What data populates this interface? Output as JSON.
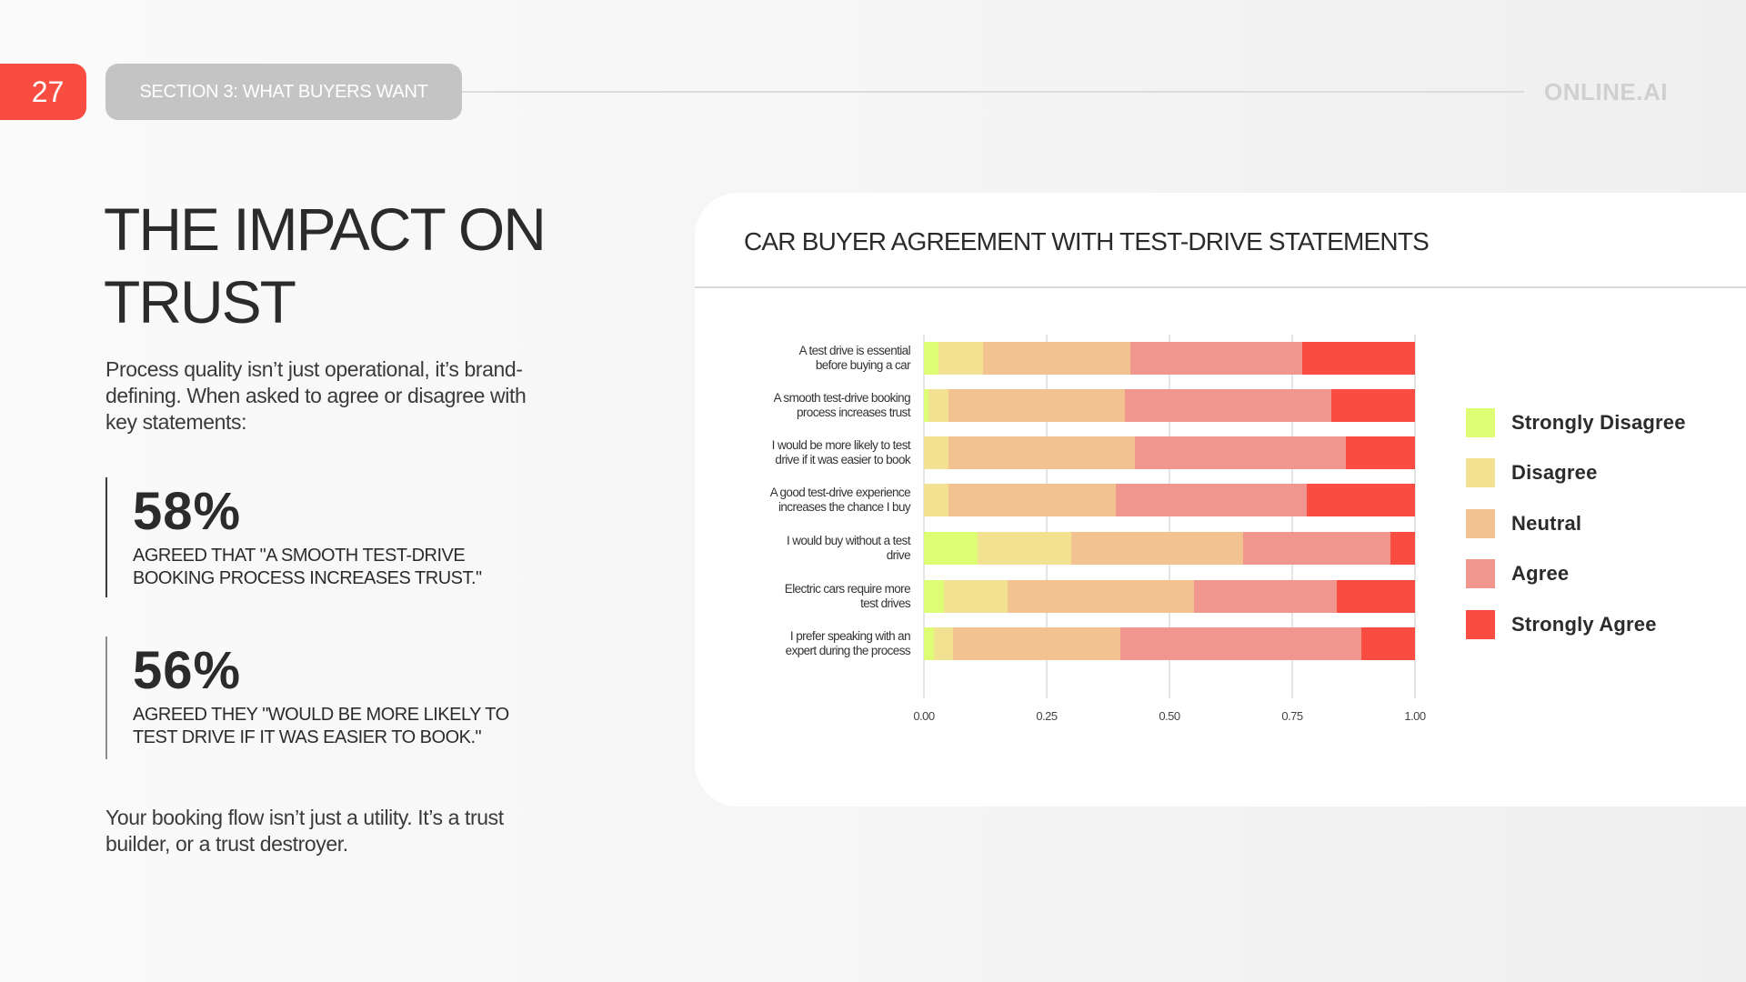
{
  "header": {
    "page_number": "27",
    "section_label": "SECTION 3: WHAT BUYERS WANT",
    "brand": "ONLINE.AI"
  },
  "left": {
    "title_line1": "THE IMPACT ON",
    "title_line2": "TRUST",
    "intro": "Process quality isn’t just operational, it’s brand-defining. When asked to agree or disagree with key statements:",
    "stats": [
      {
        "value": "58%",
        "caption": "AGREED THAT \"A SMOOTH TEST-DRIVE BOOKING PROCESS INCREASES TRUST.\""
      },
      {
        "value": "56%",
        "caption": "AGREED THEY \"WOULD BE MORE LIKELY TO TEST DRIVE IF IT WAS EASIER TO BOOK.\""
      }
    ],
    "closing": "Your booking flow isn’t just a utility. It’s a trust builder, or a trust destroyer."
  },
  "colors": {
    "accent": "#f84d40",
    "strongly_disagree": "#dcfd74",
    "disagree": "#f2e190",
    "neutral": "#f2c390",
    "agree": "#f1968e",
    "strongly_agree": "#f84d40"
  },
  "chart_data": {
    "type": "bar",
    "orientation": "horizontal",
    "stacked": true,
    "title": "CAR BUYER AGREEMENT WITH TEST-DRIVE STATEMENTS",
    "xlabel": "",
    "ylabel": "",
    "xlim": [
      0,
      1
    ],
    "x_ticks": [
      "0.00",
      "0.25",
      "0.50",
      "0.75",
      "1.00"
    ],
    "grid": true,
    "legend_position": "right",
    "categories": [
      "A test drive is essential before buying a car",
      "A smooth test-drive booking process increases trust",
      "I would be more likely to test drive if it was easier to book",
      "A good test-drive experience increases the chance I buy",
      "I would buy without a test drive",
      "Electric cars require more test drives",
      "I prefer speaking with an expert during the process"
    ],
    "series": [
      {
        "name": "Strongly Disagree",
        "color": "#dcfd74",
        "values": [
          0.03,
          0.01,
          0.0,
          0.0,
          0.11,
          0.04,
          0.02
        ]
      },
      {
        "name": "Disagree",
        "color": "#f2e190",
        "values": [
          0.09,
          0.04,
          0.05,
          0.05,
          0.19,
          0.13,
          0.04
        ]
      },
      {
        "name": "Neutral",
        "color": "#f2c390",
        "values": [
          0.3,
          0.36,
          0.38,
          0.34,
          0.35,
          0.38,
          0.34
        ]
      },
      {
        "name": "Agree",
        "color": "#f1968e",
        "values": [
          0.35,
          0.42,
          0.43,
          0.39,
          0.3,
          0.29,
          0.49
        ]
      },
      {
        "name": "Strongly Agree",
        "color": "#f84d40",
        "values": [
          0.23,
          0.17,
          0.14,
          0.22,
          0.05,
          0.16,
          0.11
        ]
      }
    ]
  },
  "chart_labels": [
    [
      "A test drive is essential",
      "before buying a car"
    ],
    [
      "A smooth test-drive booking",
      "process increases trust"
    ],
    [
      "I would be more likely to test",
      "drive if it was easier to book"
    ],
    [
      "A good test-drive experience",
      "increases the chance I buy"
    ],
    [
      "I would buy without a test",
      "drive"
    ],
    [
      "Electric cars require more",
      "test drives"
    ],
    [
      "I prefer speaking with an",
      "expert during the process"
    ]
  ]
}
